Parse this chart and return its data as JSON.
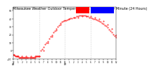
{
  "title": "Milwaukee Weather Outdoor Temperature vs Wind Chill per Minute (24 Hours)",
  "bg_color": "#ffffff",
  "plot_bg": "#ffffff",
  "temp_color": "#ff0000",
  "wind_color": "#ff0000",
  "legend_temp_color": "#ff0000",
  "legend_wind_color": "#0000ff",
  "grid_color": "#aaaaaa",
  "ylim": [
    -10,
    55
  ],
  "xlim": [
    0,
    1440
  ],
  "title_fontsize": 3.5,
  "tick_fontsize": 2.2,
  "ytick_values": [
    -10,
    0,
    10,
    20,
    30,
    40,
    50
  ],
  "xtick_positions": [
    0,
    60,
    120,
    180,
    240,
    300,
    360,
    420,
    480,
    540,
    600,
    660,
    720,
    780,
    840,
    900,
    960,
    1020,
    1080,
    1140,
    1200,
    1260,
    1320,
    1380,
    1440
  ],
  "xtick_labels": [
    "12\nAM",
    "1",
    "2",
    "3",
    "4",
    "5",
    "6",
    "7",
    "8",
    "9",
    "10",
    "11",
    "12\nPM",
    "1",
    "2",
    "3",
    "4",
    "5",
    "6",
    "7",
    "8",
    "9",
    "10",
    "11",
    "12"
  ],
  "vline_positions": [
    360,
    720,
    1080
  ],
  "temp_data_x": [
    0,
    10,
    20,
    30,
    40,
    50,
    60,
    70,
    80,
    90,
    100,
    110,
    120,
    130,
    140,
    150,
    160,
    170,
    180,
    190,
    200,
    210,
    220,
    230,
    240,
    250,
    260,
    270,
    280,
    290,
    300,
    310,
    320,
    330,
    340,
    350,
    360,
    380,
    400,
    420,
    440,
    460,
    480,
    500,
    520,
    540,
    560,
    580,
    600,
    620,
    640,
    660,
    680,
    700,
    720,
    740,
    760,
    780,
    800,
    820,
    840,
    860,
    880,
    900,
    920,
    940,
    960,
    980,
    1000,
    1020,
    1040,
    1060,
    1080,
    1100,
    1120,
    1140,
    1160,
    1180,
    1200,
    1220,
    1240,
    1260,
    1280,
    1300,
    1320,
    1340,
    1360,
    1380,
    1400,
    1420,
    1440
  ],
  "temp_data_y": [
    -5,
    -5,
    -6,
    -7,
    -7,
    -7,
    -7,
    -7,
    -8,
    -8,
    -8,
    -8,
    -8,
    -8,
    -8,
    -8,
    -8,
    -8,
    -8,
    -8,
    -8,
    -8,
    -8,
    -8,
    -8,
    -8,
    -8,
    -8,
    -8,
    -8,
    -8,
    -7,
    -7,
    -7,
    -7,
    -7,
    -7,
    0,
    2,
    5,
    8,
    10,
    12,
    15,
    18,
    20,
    23,
    25,
    28,
    30,
    32,
    35,
    36,
    37,
    38,
    38,
    39,
    40,
    41,
    41,
    42,
    42,
    43,
    43,
    44,
    44,
    44,
    44,
    44,
    43,
    43,
    42,
    42,
    41,
    40,
    40,
    39,
    38,
    37,
    36,
    35,
    34,
    32,
    31,
    29,
    27,
    25,
    23,
    21,
    19,
    17
  ],
  "wind_data_x": [
    0,
    60,
    120,
    180,
    240,
    300,
    360,
    420,
    480,
    540,
    600,
    660,
    720,
    780,
    840,
    900,
    960,
    1020,
    1080,
    1140,
    1200,
    1260,
    1320,
    1380,
    1440
  ],
  "wind_data_y": [
    -5,
    -7,
    -7,
    -7,
    -7,
    -7,
    -7,
    0,
    10,
    18,
    26,
    33,
    38,
    40,
    42,
    42,
    43,
    43,
    43,
    42,
    40,
    37,
    33,
    28,
    20
  ]
}
